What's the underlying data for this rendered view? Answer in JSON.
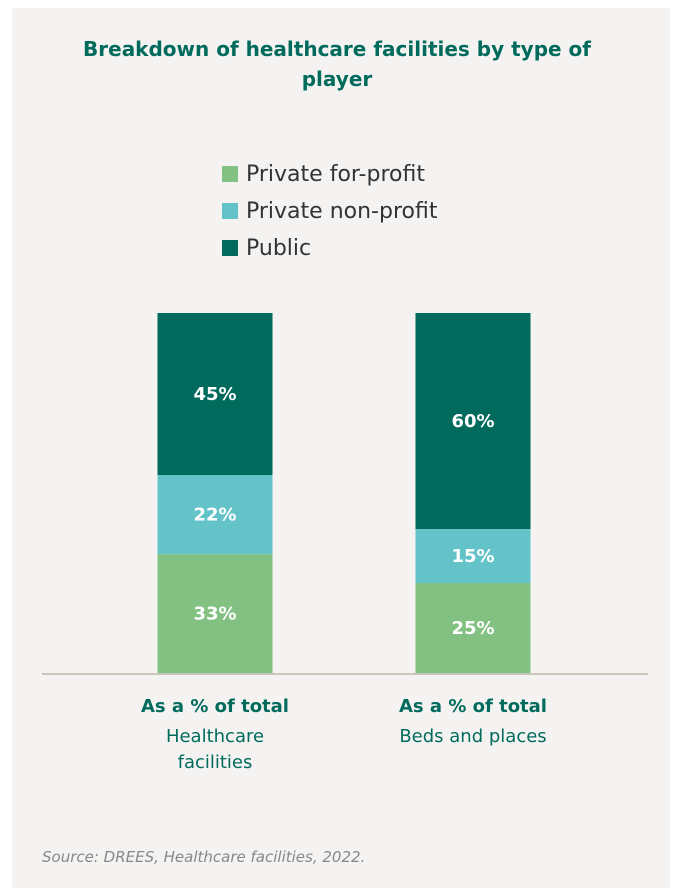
{
  "chart_data": {
    "type": "stacked_bar",
    "title": "Breakdown of healthcare facilities by type of player",
    "category_headers": [
      "As a % of total",
      "As a % of total"
    ],
    "categories": [
      "Healthcare facilities",
      "Beds and places"
    ],
    "series": [
      {
        "name": "Private for-profit",
        "color": "#82c182",
        "values": [
          33,
          25
        ],
        "value_labels": [
          "33%",
          "25%"
        ]
      },
      {
        "name": "Private non-profit",
        "color": "#63c3c8",
        "values": [
          22,
          15
        ],
        "value_labels": [
          "22%",
          "15%"
        ]
      },
      {
        "name": "Public",
        "color": "#006b5d",
        "values": [
          45,
          60
        ],
        "value_labels": [
          "45%",
          "60%"
        ]
      }
    ],
    "ylim": [
      0,
      100
    ],
    "source": "Source: DREES, Healthcare facilities, 2022."
  }
}
